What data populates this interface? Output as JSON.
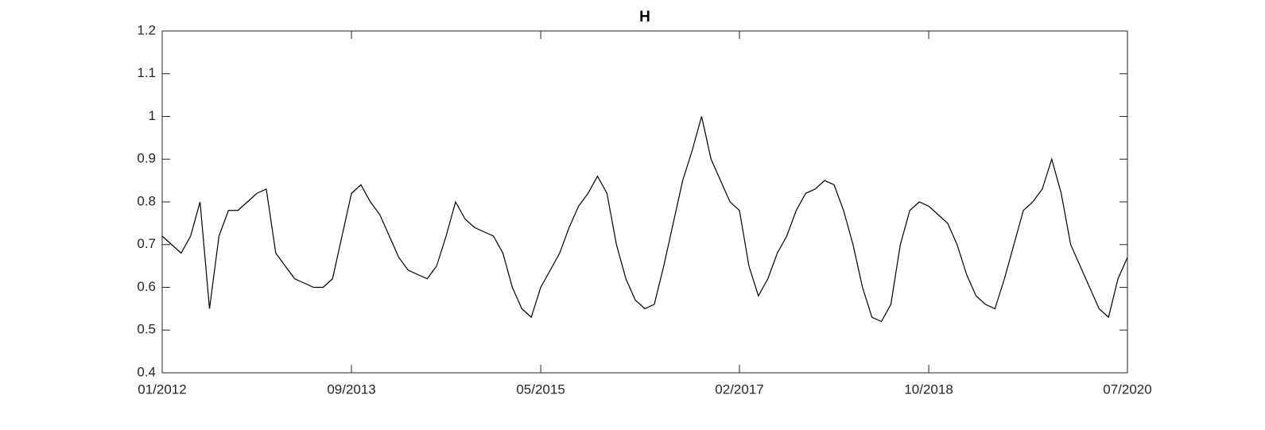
{
  "chart_data": {
    "type": "line",
    "title": "H",
    "x": [
      "2012-01",
      "2012-02",
      "2012-03",
      "2012-04",
      "2012-05",
      "2012-06",
      "2012-07",
      "2012-08",
      "2012-09",
      "2012-10",
      "2012-11",
      "2012-12",
      "2013-01",
      "2013-02",
      "2013-03",
      "2013-04",
      "2013-05",
      "2013-06",
      "2013-07",
      "2013-08",
      "2013-09",
      "2013-10",
      "2013-11",
      "2013-12",
      "2014-01",
      "2014-02",
      "2014-03",
      "2014-04",
      "2014-05",
      "2014-06",
      "2014-07",
      "2014-08",
      "2014-09",
      "2014-10",
      "2014-11",
      "2014-12",
      "2015-01",
      "2015-02",
      "2015-03",
      "2015-04",
      "2015-05",
      "2015-06",
      "2015-07",
      "2015-08",
      "2015-09",
      "2015-10",
      "2015-11",
      "2015-12",
      "2016-01",
      "2016-02",
      "2016-03",
      "2016-04",
      "2016-05",
      "2016-06",
      "2016-07",
      "2016-08",
      "2016-09",
      "2016-10",
      "2016-11",
      "2016-12",
      "2017-01",
      "2017-02",
      "2017-03",
      "2017-04",
      "2017-05",
      "2017-06",
      "2017-07",
      "2017-08",
      "2017-09",
      "2017-10",
      "2017-11",
      "2017-12",
      "2018-01",
      "2018-02",
      "2018-03",
      "2018-04",
      "2018-05",
      "2018-06",
      "2018-07",
      "2018-08",
      "2018-09",
      "2018-10",
      "2018-11",
      "2018-12",
      "2019-01",
      "2019-02",
      "2019-03",
      "2019-04",
      "2019-05",
      "2019-06",
      "2019-07",
      "2019-08",
      "2019-09",
      "2019-10",
      "2019-11",
      "2019-12",
      "2020-01",
      "2020-02",
      "2020-03",
      "2020-04",
      "2020-05",
      "2020-06",
      "2020-07"
    ],
    "values": [
      0.72,
      0.7,
      0.68,
      0.72,
      0.8,
      0.55,
      0.72,
      0.78,
      0.78,
      0.8,
      0.82,
      0.83,
      0.68,
      0.65,
      0.62,
      0.61,
      0.6,
      0.6,
      0.62,
      0.72,
      0.82,
      0.84,
      0.8,
      0.77,
      0.72,
      0.67,
      0.64,
      0.63,
      0.62,
      0.65,
      0.72,
      0.8,
      0.76,
      0.74,
      0.73,
      0.72,
      0.68,
      0.6,
      0.55,
      0.53,
      0.6,
      0.64,
      0.68,
      0.74,
      0.79,
      0.82,
      0.86,
      0.82,
      0.7,
      0.62,
      0.57,
      0.55,
      0.56,
      0.65,
      0.75,
      0.85,
      0.92,
      1.0,
      0.9,
      0.85,
      0.8,
      0.78,
      0.65,
      0.58,
      0.62,
      0.68,
      0.72,
      0.78,
      0.82,
      0.83,
      0.85,
      0.84,
      0.78,
      0.7,
      0.6,
      0.53,
      0.52,
      0.56,
      0.7,
      0.78,
      0.8,
      0.79,
      0.77,
      0.75,
      0.7,
      0.63,
      0.58,
      0.56,
      0.55,
      0.62,
      0.7,
      0.78,
      0.8,
      0.83,
      0.9,
      0.82,
      0.7,
      0.65,
      0.6,
      0.55,
      0.53,
      0.62,
      0.67
    ],
    "color": "#000000",
    "xlim": [
      "2012-01",
      "2020-07"
    ],
    "xticks": [
      {
        "value": "2012-01",
        "label": "01/2012"
      },
      {
        "value": "2013-09",
        "label": "09/2013"
      },
      {
        "value": "2015-05",
        "label": "05/2015"
      },
      {
        "value": "2017-02",
        "label": "02/2017"
      },
      {
        "value": "2018-10",
        "label": "10/2018"
      },
      {
        "value": "2020-07",
        "label": "07/2020"
      }
    ],
    "ylim": [
      0.4,
      1.2
    ],
    "yticks": [
      0.4,
      0.5,
      0.6,
      0.7,
      0.8,
      0.9,
      1,
      1.1,
      1.2
    ],
    "grid": false
  }
}
